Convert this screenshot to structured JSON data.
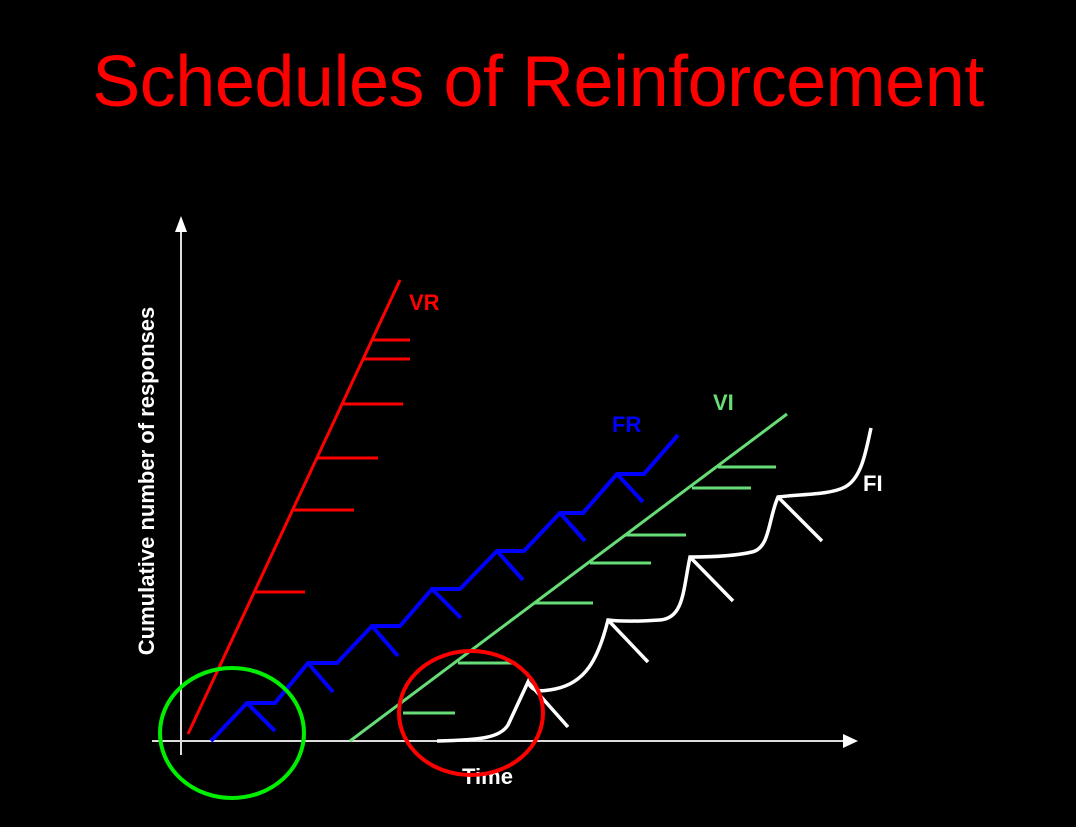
{
  "title": "Schedules of Reinforcement",
  "axes": {
    "x_label": "Time",
    "y_label": "Cumulative number of responses"
  },
  "series": [
    {
      "label": "VR",
      "color": "#ff0000"
    },
    {
      "label": "FR",
      "color": "#0000ff"
    },
    {
      "label": "VI",
      "color": "#66dd77"
    },
    {
      "label": "FI",
      "color": "#ffffff"
    }
  ],
  "highlights": [
    {
      "color": "#00ee00"
    },
    {
      "color": "#ff0000"
    }
  ]
}
